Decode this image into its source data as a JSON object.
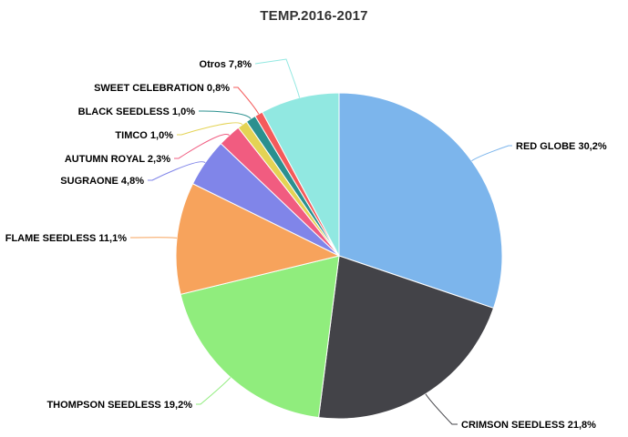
{
  "chart_data": {
    "type": "pie",
    "title": "TEMP.2016-2017",
    "series": [
      {
        "name": "",
        "points": [
          {
            "label": "RED GLOBE",
            "display": "RED GLOBE 30,2%",
            "value": 30.2,
            "color": "#7cb5ec"
          },
          {
            "label": "CRIMSON SEEDLESS",
            "display": "CRIMSON SEEDLESS 21,8%",
            "value": 21.8,
            "color": "#434348"
          },
          {
            "label": "THOMPSON SEEDLESS",
            "display": "THOMPSON SEEDLESS 19,2%",
            "value": 19.2,
            "color": "#90ed7d"
          },
          {
            "label": "FLAME SEEDLESS",
            "display": "FLAME SEEDLESS 11,1%",
            "value": 11.1,
            "color": "#f7a35c"
          },
          {
            "label": "SUGRAONE",
            "display": "SUGRAONE 4,8%",
            "value": 4.8,
            "color": "#8085e9"
          },
          {
            "label": "AUTUMN ROYAL",
            "display": "AUTUMN ROYAL 2,3%",
            "value": 2.3,
            "color": "#f15c80"
          },
          {
            "label": "TIMCO",
            "display": "TIMCO 1,0%",
            "value": 1.0,
            "color": "#e4d354"
          },
          {
            "label": "BLACK SEEDLESS",
            "display": "BLACK SEEDLESS 1,0%",
            "value": 1.0,
            "color": "#2b908f"
          },
          {
            "label": "SWEET CELEBRATION",
            "display": "SWEET CELEBRATION 0,8%",
            "value": 0.8,
            "color": "#f45b5b"
          },
          {
            "label": "Otros",
            "display": "Otros 7,8%",
            "value": 7.8,
            "color": "#91e8e1"
          }
        ]
      }
    ],
    "legend": "none",
    "data_labels": "outside-with-connectors",
    "start_angle": "top, clockwise"
  }
}
